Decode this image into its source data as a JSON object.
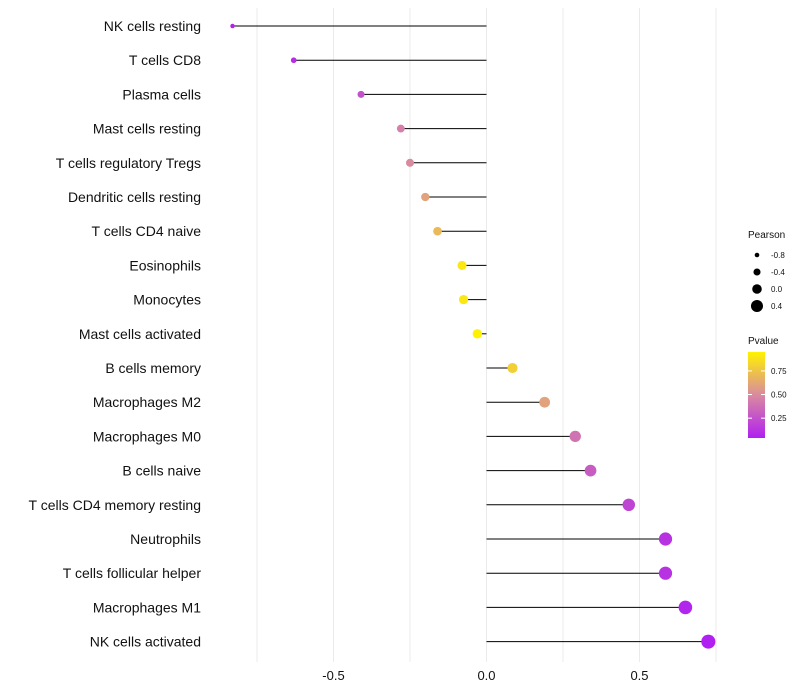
{
  "chart_data": {
    "type": "lollipop",
    "categories": [
      "NK cells resting",
      "T cells CD8",
      "Plasma cells",
      "Mast cells resting",
      "T cells regulatory  Tregs",
      "Dendritic cells resting",
      "T cells CD4 naive",
      "Eosinophils",
      "Monocytes",
      "Mast cells activated",
      "B cells memory",
      "Macrophages M2",
      "Macrophages M0",
      "B cells naive",
      "T cells CD4 memory resting",
      "Neutrophils",
      "T cells follicular helper",
      "Macrophages M1",
      "NK cells activated"
    ],
    "pearson": [
      -0.83,
      -0.63,
      -0.41,
      -0.28,
      -0.25,
      -0.2,
      -0.16,
      -0.08,
      -0.075,
      -0.03,
      0.085,
      0.19,
      0.29,
      0.34,
      0.465,
      0.585,
      0.585,
      0.65,
      0.725
    ],
    "pvalue": [
      0.05,
      0.1,
      0.25,
      0.45,
      0.5,
      0.6,
      0.7,
      0.9,
      0.9,
      0.95,
      0.8,
      0.6,
      0.4,
      0.3,
      0.2,
      0.12,
      0.12,
      0.06,
      0.04
    ],
    "xlim": [
      -0.9,
      0.78
    ],
    "x_ticks": [
      -0.5,
      0.0,
      0.5
    ],
    "x_tick_labels": [
      "-0.5",
      "0.0",
      "0.5"
    ],
    "xlabel": "",
    "ylabel": "",
    "grid": true,
    "legend": {
      "size_title": "Pearson",
      "size_values": [
        -0.8,
        -0.4,
        0.0,
        0.4
      ],
      "size_labels": [
        "-0.8",
        "-0.4",
        "0.0",
        "0.4"
      ],
      "color_title": "Pvalue",
      "color_values": [
        0.75,
        0.5,
        0.25
      ],
      "color_labels": [
        "0.75",
        "0.50",
        "0.25"
      ],
      "color_low": "#b020f0",
      "color_mid": "#d98aa0",
      "color_high": "#fff200",
      "placement": "right"
    },
    "colors": {
      "segment": "#000000",
      "grid": "#ebebeb"
    }
  }
}
